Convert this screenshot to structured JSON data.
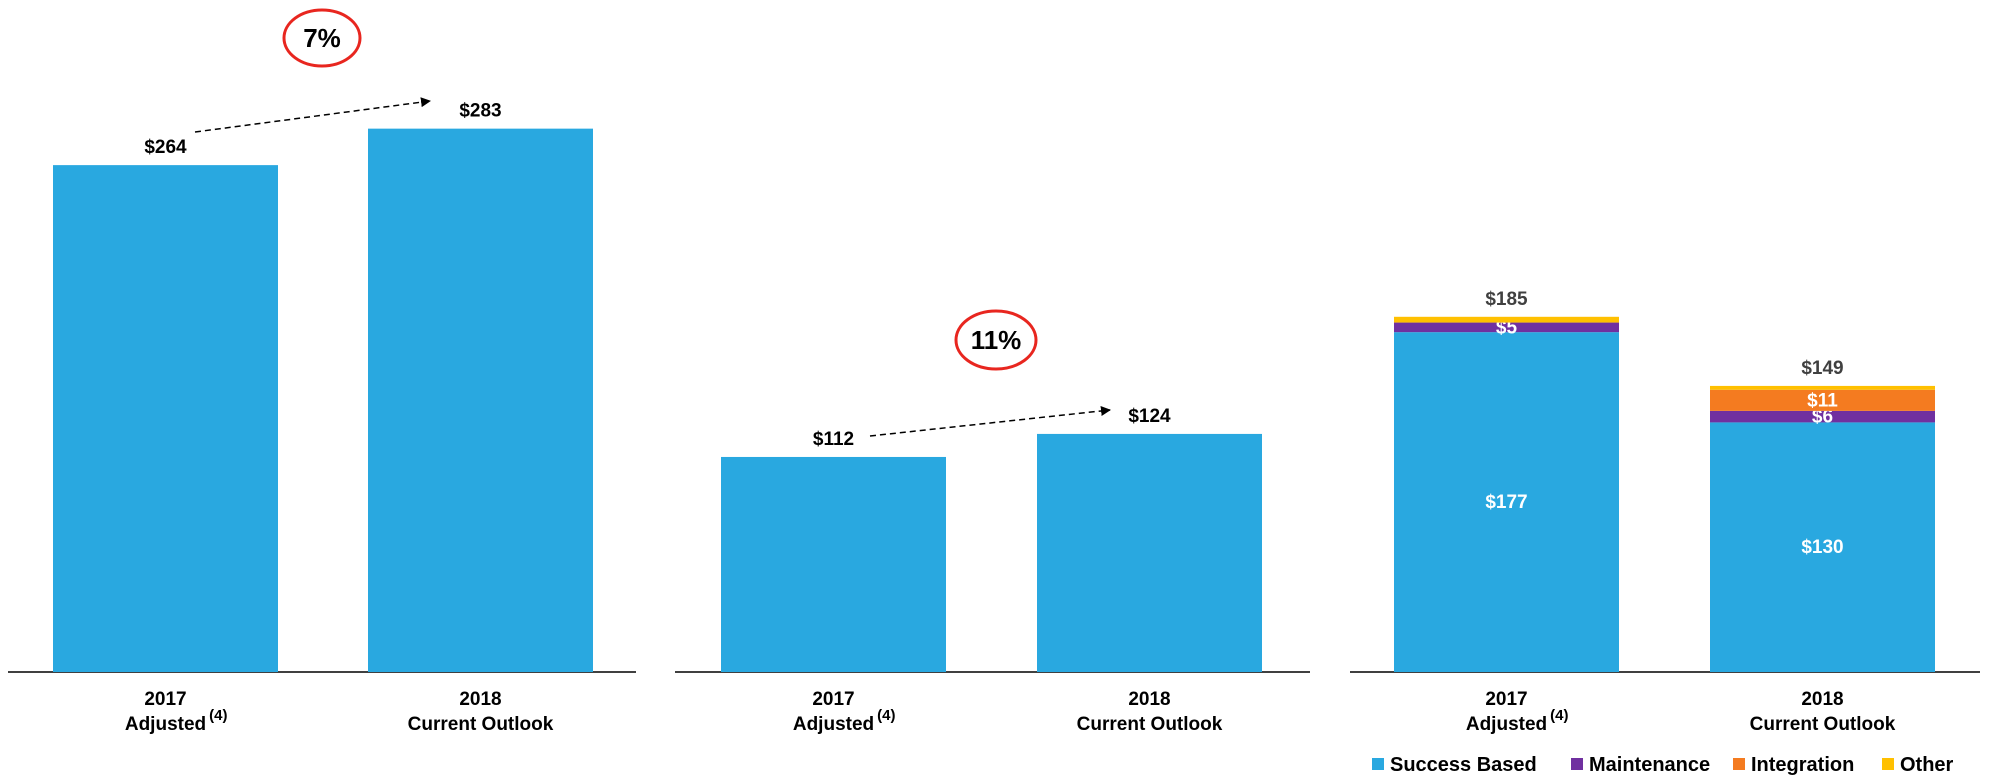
{
  "colors": {
    "bar": "#29a8e0",
    "success_based": "#29a8e0",
    "maintenance": "#7030a0",
    "integration": "#f47b20",
    "other": "#ffc000",
    "circle": "#e8261f",
    "axis": "#000000",
    "total_label_gray": "#404040"
  },
  "chart_data": [
    {
      "type": "bar",
      "categories": [
        "2017 Adjusted (4)",
        "2018 Current Outlook"
      ],
      "category_lines": [
        [
          "2017",
          "Adjusted",
          "(4)"
        ],
        [
          "2018",
          "Current Outlook",
          ""
        ]
      ],
      "values": [
        264,
        283
      ],
      "value_labels": [
        "$264",
        "$283"
      ],
      "growth_label": "7%",
      "title": "",
      "xlabel": "",
      "ylabel": "",
      "grid": false
    },
    {
      "type": "bar",
      "categories": [
        "2017 Adjusted (4)",
        "2018 Current Outlook"
      ],
      "category_lines": [
        [
          "2017",
          "Adjusted",
          "(4)"
        ],
        [
          "2018",
          "Current Outlook",
          ""
        ]
      ],
      "values": [
        112,
        124
      ],
      "value_labels": [
        "$112",
        "$124"
      ],
      "growth_label": "11%",
      "title": "",
      "xlabel": "",
      "ylabel": "",
      "grid": false
    },
    {
      "type": "bar",
      "stacked": true,
      "categories": [
        "2017 Adjusted (4)",
        "2018 Current Outlook"
      ],
      "category_lines": [
        [
          "2017",
          "Adjusted",
          "(4)"
        ],
        [
          "2018",
          "Current Outlook",
          ""
        ]
      ],
      "series": [
        {
          "name": "Success Based",
          "values": [
            177,
            130
          ],
          "labels": [
            "$177",
            "$130"
          ]
        },
        {
          "name": "Maintenance",
          "values": [
            5,
            6
          ],
          "labels": [
            "$5",
            "$6"
          ]
        },
        {
          "name": "Integration",
          "values": [
            0,
            11
          ],
          "labels": [
            "",
            "$11"
          ]
        },
        {
          "name": "Other",
          "values": [
            3,
            2
          ],
          "labels": [
            "",
            ""
          ]
        }
      ],
      "totals": [
        185,
        149
      ],
      "total_labels": [
        "$185",
        "$149"
      ],
      "legend": [
        "Success Based",
        "Maintenance",
        "Integration",
        "Other"
      ],
      "legend_position": "bottom-right",
      "title": "",
      "xlabel": "",
      "ylabel": "",
      "grid": false
    }
  ]
}
